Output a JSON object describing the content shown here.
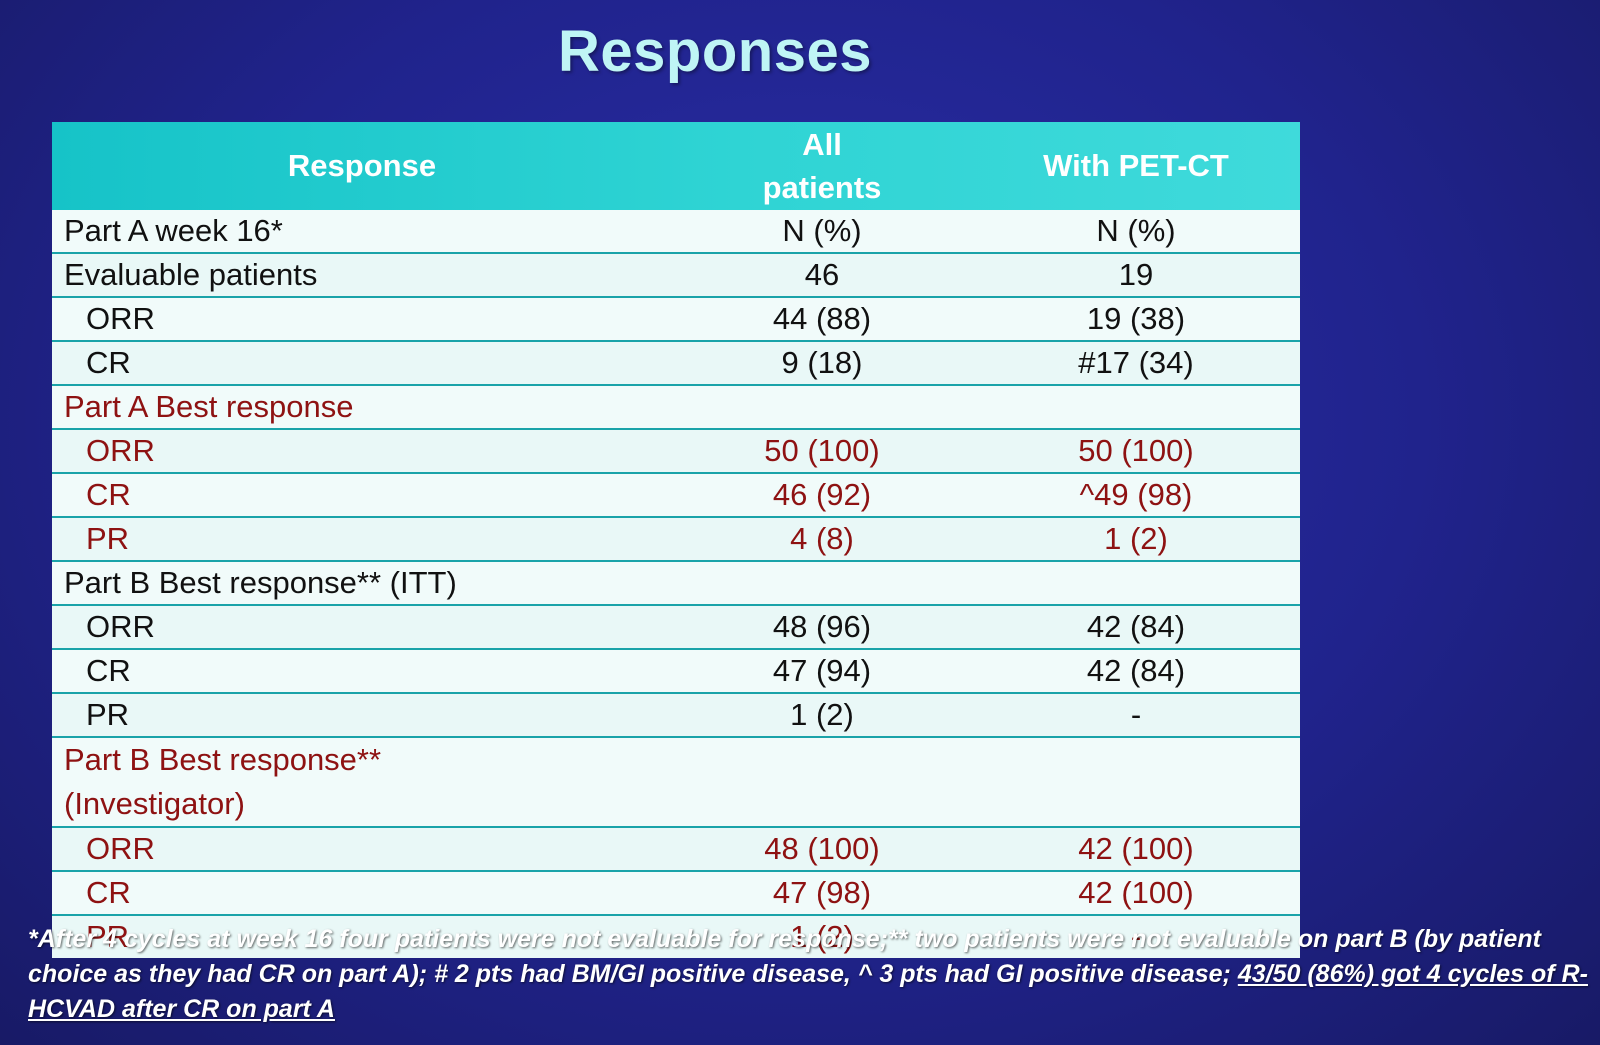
{
  "title": "Responses",
  "header": {
    "col0": "Response",
    "col1": "All patients",
    "col2": "With PET-CT"
  },
  "rows": [
    {
      "label": "Part A week 16*",
      "all": "N (%)",
      "pet": "N (%)"
    },
    {
      "label": "Evaluable patients",
      "all": "46",
      "pet": "19"
    },
    {
      "label": "ORR",
      "all": "44 (88)",
      "pet": "19 (38)"
    },
    {
      "label": "CR",
      "all": "9 (18)",
      "pet": "#17 (34)"
    },
    {
      "label": "Part A Best response",
      "all": "",
      "pet": ""
    },
    {
      "label": "ORR",
      "all": "50 (100)",
      "pet": "50 (100)"
    },
    {
      "label": "CR",
      "all": "46 (92)",
      "pet": "^49 (98)"
    },
    {
      "label": "PR",
      "all": "4 (8)",
      "pet": "1 (2)"
    },
    {
      "label": "Part B Best response** (ITT)",
      "all": "",
      "pet": ""
    },
    {
      "label": "ORR",
      "all": "48 (96)",
      "pet": "42 (84)"
    },
    {
      "label": "CR",
      "all": "47 (94)",
      "pet": "42 (84)"
    },
    {
      "label": "PR",
      "all": "1 (2)",
      "pet": "-"
    },
    {
      "label": "Part B Best response** (Investigator)",
      "all": "",
      "pet": ""
    },
    {
      "label": "ORR",
      "all": "48 (100)",
      "pet": "42 (100)"
    },
    {
      "label": "CR",
      "all": "47 (98)",
      "pet": "42 (100)"
    },
    {
      "label": "PR",
      "all": "1 (2)",
      "pet": "-"
    }
  ],
  "footnote": {
    "main": "*After 4 cycles at week 16 four patients were not evaluable for response;** two patients were not evaluable on part B (by patient choice as they had CR on part A); # 2 pts had BM/GI positive disease, ^ 3 pts had GI positive disease; ",
    "underlined": "43/50 (86%) got 4 cycles of R-HCVAD after CR on part A"
  },
  "colors": {
    "background": "#20238c",
    "header": "#2fd4d4",
    "title": "#bff5f5",
    "red_text": "#8e1212"
  }
}
